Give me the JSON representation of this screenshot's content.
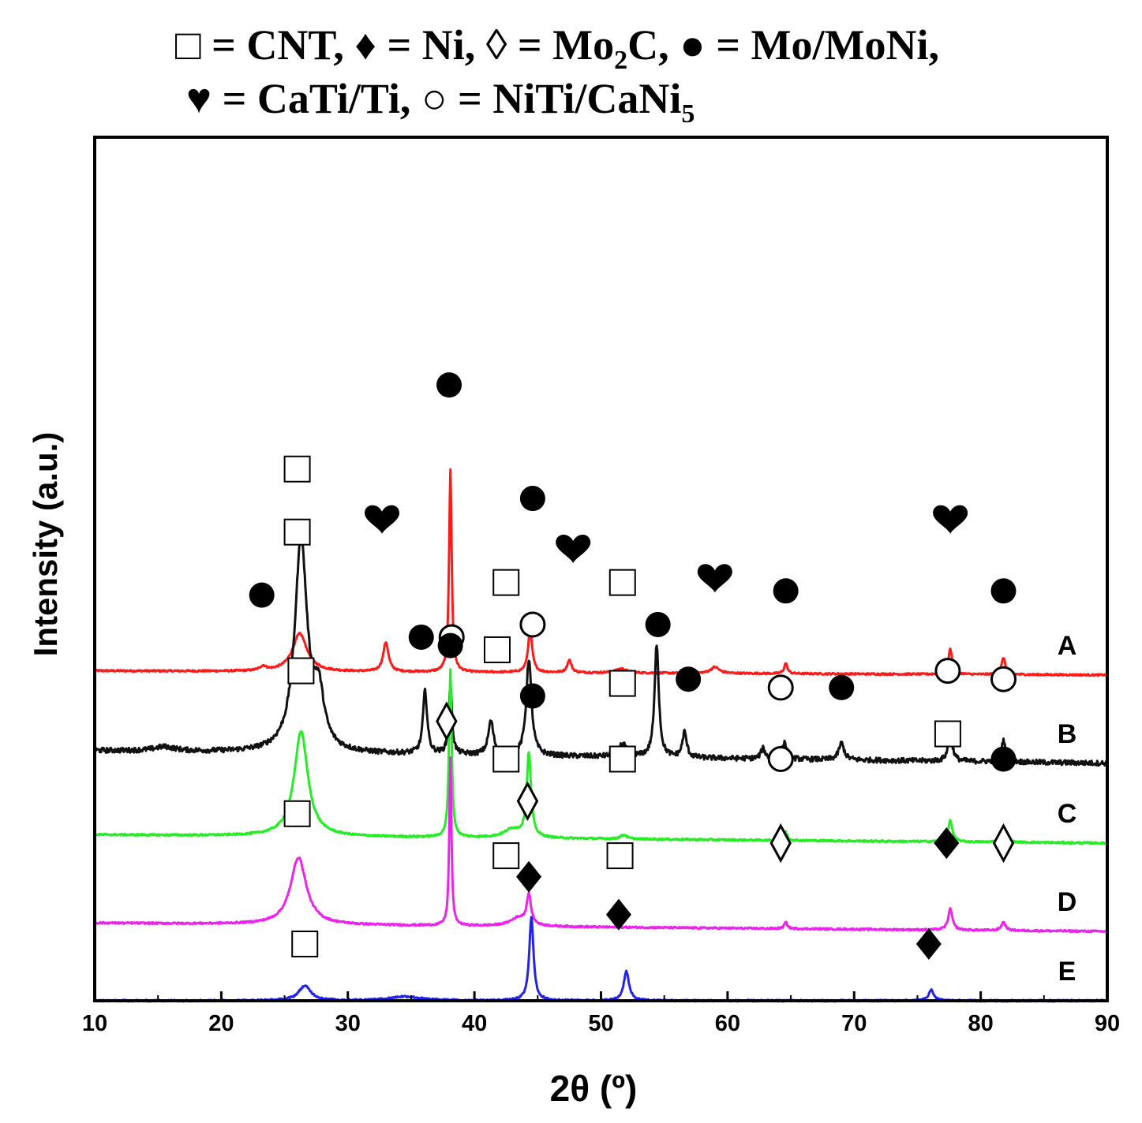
{
  "legend": {
    "line1": [
      {
        "text": "□ = CNT,"
      },
      {
        "text": "♦ = Ni,"
      },
      {
        "text": "◊ = Mo",
        "sub": "2",
        "after": "C,"
      },
      {
        "text": "● = Mo/MoNi,"
      }
    ],
    "line2": [
      {
        "text": "♥ = CaTi/Ti,"
      },
      {
        "text": "○ = NiTi/CaNi",
        "sub": "5"
      }
    ]
  },
  "chart_data": {
    "type": "line",
    "xlabel": "2θ (º)",
    "ylabel": "Intensity (a.u.)",
    "xlim": [
      10,
      90
    ],
    "xticks": [
      10,
      20,
      30,
      40,
      50,
      60,
      70,
      80,
      90
    ],
    "y_ticks_shown": false,
    "series": [
      {
        "name": "A",
        "color": "#ff1a1a",
        "baseline": 0.74,
        "tilt": -0.01,
        "peaks": [
          [
            23.3,
            0.01,
            0.3
          ],
          [
            26.2,
            0.09,
            0.7
          ],
          [
            33.0,
            0.07,
            0.25
          ],
          [
            38.1,
            0.48,
            0.12
          ],
          [
            44.4,
            0.1,
            0.2
          ],
          [
            47.5,
            0.03,
            0.2
          ],
          [
            51.6,
            0.01,
            0.5
          ],
          [
            59.0,
            0.015,
            0.4
          ],
          [
            64.6,
            0.025,
            0.15
          ],
          [
            77.6,
            0.06,
            0.18
          ],
          [
            81.8,
            0.04,
            0.18
          ]
        ],
        "markers": [
          {
            "symbol": "filled-circle",
            "x": 23.2,
            "y": 0.92
          },
          {
            "symbol": "square",
            "x": 26.0,
            "y": 1.22
          },
          {
            "symbol": "heart",
            "x": 32.7,
            "y": 1.1
          },
          {
            "symbol": "filled-circle",
            "x": 38.0,
            "y": 1.42
          },
          {
            "symbol": "filled-circle",
            "x": 44.6,
            "y": 1.15
          },
          {
            "symbol": "square",
            "x": 42.5,
            "y": 0.95
          },
          {
            "symbol": "heart",
            "x": 47.8,
            "y": 1.03
          },
          {
            "symbol": "square",
            "x": 51.7,
            "y": 0.95
          },
          {
            "symbol": "heart",
            "x": 59.0,
            "y": 0.96
          },
          {
            "symbol": "filled-circle",
            "x": 64.6,
            "y": 0.93
          },
          {
            "symbol": "heart",
            "x": 77.6,
            "y": 1.1
          },
          {
            "symbol": "filled-circle",
            "x": 81.8,
            "y": 0.93
          }
        ]
      },
      {
        "name": "B",
        "color": "#111111",
        "baseline": 0.55,
        "tilt": -0.03,
        "peaks": [
          [
            15.5,
            0.01,
            1.0
          ],
          [
            26.3,
            0.5,
            0.6
          ],
          [
            27.7,
            0.12,
            0.5
          ],
          [
            36.1,
            0.15,
            0.2
          ],
          [
            38.1,
            0.16,
            0.15
          ],
          [
            41.3,
            0.08,
            0.25
          ],
          [
            44.3,
            0.23,
            0.25
          ],
          [
            51.7,
            0.03,
            0.4
          ],
          [
            54.4,
            0.27,
            0.2
          ],
          [
            56.6,
            0.06,
            0.2
          ],
          [
            62.8,
            0.025,
            0.2
          ],
          [
            64.5,
            0.04,
            0.2
          ],
          [
            69.0,
            0.04,
            0.25
          ],
          [
            77.6,
            0.07,
            0.2
          ],
          [
            81.8,
            0.05,
            0.2
          ]
        ],
        "markers": [
          {
            "symbol": "square",
            "x": 26.0,
            "y": 1.07
          },
          {
            "symbol": "filled-circle",
            "x": 35.8,
            "y": 0.82
          },
          {
            "symbol": "open-circle",
            "x": 38.2,
            "y": 0.82
          },
          {
            "symbol": "square",
            "x": 41.8,
            "y": 0.79
          },
          {
            "symbol": "open-circle",
            "x": 44.6,
            "y": 0.85
          },
          {
            "symbol": "square",
            "x": 51.7,
            "y": 0.71
          },
          {
            "symbol": "filled-circle",
            "x": 54.5,
            "y": 0.85
          },
          {
            "symbol": "filled-circle",
            "x": 56.9,
            "y": 0.72
          },
          {
            "symbol": "open-circle",
            "x": 64.2,
            "y": 0.7
          },
          {
            "symbol": "filled-circle",
            "x": 69.0,
            "y": 0.7
          },
          {
            "symbol": "open-circle",
            "x": 77.4,
            "y": 0.74
          },
          {
            "symbol": "open-circle",
            "x": 81.8,
            "y": 0.72
          }
        ]
      },
      {
        "name": "C",
        "color": "#22ee22",
        "baseline": 0.35,
        "tilt": -0.02,
        "peaks": [
          [
            26.3,
            0.25,
            0.65
          ],
          [
            38.1,
            0.4,
            0.12
          ],
          [
            43.0,
            0.02,
            0.8
          ],
          [
            44.3,
            0.2,
            0.2
          ],
          [
            51.8,
            0.01,
            0.3
          ],
          [
            64.6,
            0.02,
            0.15
          ],
          [
            77.6,
            0.05,
            0.2
          ],
          [
            81.8,
            0.03,
            0.2
          ]
        ],
        "markers": [
          {
            "symbol": "square",
            "x": 26.3,
            "y": 0.74
          },
          {
            "symbol": "filled-circle",
            "x": 38.1,
            "y": 0.8
          },
          {
            "symbol": "filled-circle",
            "x": 44.6,
            "y": 0.68
          },
          {
            "symbol": "square",
            "x": 42.5,
            "y": 0.53
          },
          {
            "symbol": "square",
            "x": 51.7,
            "y": 0.53
          },
          {
            "symbol": "open-circle",
            "x": 64.2,
            "y": 0.53
          },
          {
            "symbol": "square",
            "x": 77.4,
            "y": 0.59
          },
          {
            "symbol": "filled-circle",
            "x": 81.8,
            "y": 0.53
          }
        ]
      },
      {
        "name": "D",
        "color": "#ee22ee",
        "baseline": 0.14,
        "tilt": -0.02,
        "peaks": [
          [
            26.1,
            0.16,
            0.75
          ],
          [
            38.1,
            0.4,
            0.1
          ],
          [
            43.5,
            0.02,
            0.8
          ],
          [
            44.3,
            0.07,
            0.2
          ],
          [
            64.6,
            0.015,
            0.15
          ],
          [
            77.6,
            0.05,
            0.2
          ],
          [
            81.8,
            0.02,
            0.2
          ]
        ],
        "markers": [
          {
            "symbol": "open-diamond",
            "x": 37.8,
            "y": 0.62
          },
          {
            "symbol": "square",
            "x": 26.0,
            "y": 0.4
          },
          {
            "symbol": "open-diamond",
            "x": 44.2,
            "y": 0.43
          },
          {
            "symbol": "square",
            "x": 42.5,
            "y": 0.3
          },
          {
            "symbol": "square",
            "x": 51.5,
            "y": 0.3
          },
          {
            "symbol": "open-diamond",
            "x": 64.2,
            "y": 0.33
          },
          {
            "symbol": "filled-diamond",
            "x": 77.3,
            "y": 0.33
          },
          {
            "symbol": "open-diamond",
            "x": 81.8,
            "y": 0.33
          }
        ]
      },
      {
        "name": "E",
        "color": "#2222ee",
        "baseline": -0.045,
        "tilt": 0.0,
        "peaks": [
          [
            26.6,
            0.035,
            0.6
          ],
          [
            34.5,
            0.01,
            1.5
          ],
          [
            44.5,
            0.2,
            0.2
          ],
          [
            52.0,
            0.07,
            0.25
          ],
          [
            76.1,
            0.025,
            0.25
          ]
        ],
        "markers": [
          {
            "symbol": "filled-diamond",
            "x": 44.3,
            "y": 0.25
          },
          {
            "symbol": "filled-diamond",
            "x": 51.4,
            "y": 0.16
          },
          {
            "symbol": "filled-diamond",
            "x": 75.9,
            "y": 0.09
          },
          {
            "symbol": "square",
            "x": 26.6,
            "y": 0.09
          }
        ]
      }
    ]
  }
}
